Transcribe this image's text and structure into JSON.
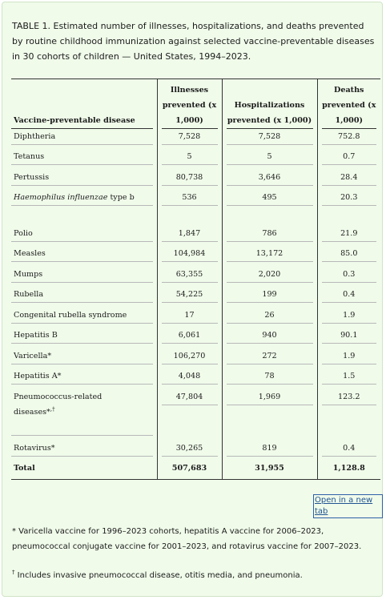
{
  "caption": "TABLE 1. Estimated number of illnesses, hospitalizations, and deaths prevented by routine childhood immunization against selected vaccine-preventable diseases in 30 cohorts of children — United States, 1994–2023.",
  "table": {
    "headers": {
      "disease": "Vaccine-preventable disease",
      "illnesses_a": "Illnesses",
      "illnesses_b": "prevented (x",
      "illnesses_c": "1,000)",
      "hosp_a": "Hospitalizations",
      "hosp_b": "prevented (x 1,000)",
      "deaths_a": "Deaths",
      "deaths_b": "prevented (x",
      "deaths_c": "1,000)"
    },
    "rows": [
      {
        "disease": "Diphtheria",
        "illnesses": "7,528",
        "hospitalizations": "7,528",
        "deaths": "752.8"
      },
      {
        "disease": "Tetanus",
        "illnesses": "5",
        "hospitalizations": "5",
        "deaths": "0.7"
      },
      {
        "disease": "Pertussis",
        "illnesses": "80,738",
        "hospitalizations": "3,646",
        "deaths": "28.4"
      },
      {
        "disease_italic": "Haemophilus influenzae",
        "disease_rest": " type b",
        "illnesses": "536",
        "hospitalizations": "495",
        "deaths": "20.3"
      },
      {
        "disease": "Polio",
        "illnesses": "1,847",
        "hospitalizations": "786",
        "deaths": "21.9"
      },
      {
        "disease": "Measles",
        "illnesses": "104,984",
        "hospitalizations": "13,172",
        "deaths": "85.0"
      },
      {
        "disease": "Mumps",
        "illnesses": "63,355",
        "hospitalizations": "2,020",
        "deaths": "0.3"
      },
      {
        "disease": "Rubella",
        "illnesses": "54,225",
        "hospitalizations": "199",
        "deaths": "0.4"
      },
      {
        "disease": "Congenital rubella syndrome",
        "illnesses": "17",
        "hospitalizations": "26",
        "deaths": "1.9"
      },
      {
        "disease": "Hepatitis B",
        "illnesses": "6,061",
        "hospitalizations": "940",
        "deaths": "90.1"
      },
      {
        "disease": "Varicella*",
        "illnesses": "106,270",
        "hospitalizations": "272",
        "deaths": "1.9"
      },
      {
        "disease": "Hepatitis A*",
        "illnesses": "4,048",
        "hospitalizations": "78",
        "deaths": "1.5"
      },
      {
        "disease_a": "Pneumococcus-related",
        "disease_b": "diseases*",
        "disease_sup": ",†",
        "illnesses": "47,804",
        "hospitalizations": "1,969",
        "deaths": "123.2"
      },
      {
        "disease": "Rotavirus*",
        "illnesses": "30,265",
        "hospitalizations": "819",
        "deaths": "0.4"
      },
      {
        "disease": "Total",
        "illnesses": "507,683",
        "hospitalizations": "31,955",
        "deaths": "1,128.8"
      }
    ]
  },
  "open_link": "Open in a new tab",
  "footnote1": "* Varicella vaccine for 1996–2023 cohorts, hepatitis A vaccine for 2006–2023, pneumococcal conjugate vaccine for 2001–2023, and rotavirus vaccine for 2007–2023.",
  "footnote2_mark": "†",
  "footnote2": " Includes invasive pneumococcal disease, otitis media, and pneumonia."
}
